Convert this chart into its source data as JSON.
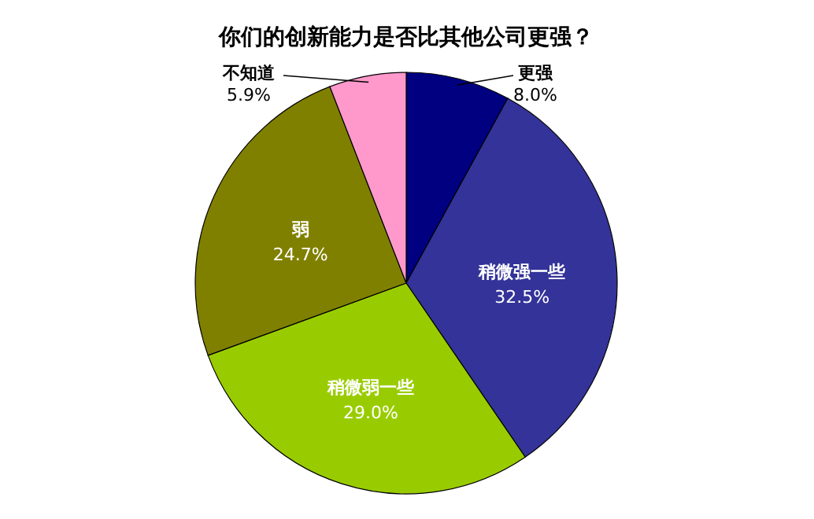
{
  "chart_data": {
    "type": "pie",
    "title": "你们的创新能力是否比其他公司更强？",
    "categories": [
      "更强",
      "稍微强一些",
      "稍微弱一些",
      "弱",
      "不知道"
    ],
    "values": [
      8.0,
      32.5,
      29.0,
      24.7,
      5.9
    ],
    "value_labels": [
      "8.0%",
      "32.5%",
      "29.0%",
      "24.7%",
      "5.9%"
    ],
    "colors": [
      "#000080",
      "#333399",
      "#99cc00",
      "#808000",
      "#ff99cc"
    ]
  }
}
